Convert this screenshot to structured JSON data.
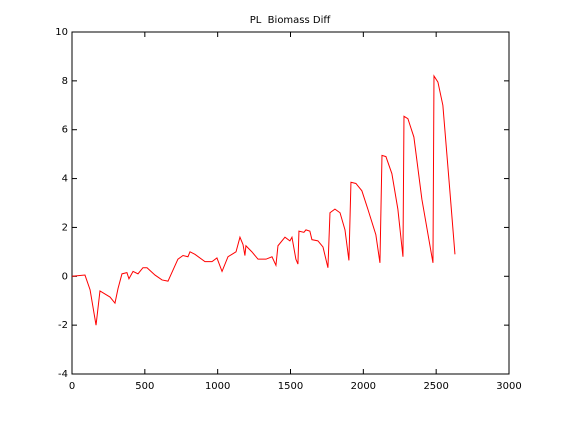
{
  "chart_data": {
    "type": "line",
    "title": "PL  Biomass Diff",
    "x": [
      0,
      89,
      124,
      165,
      192,
      261,
      295,
      316,
      343,
      377,
      391,
      419,
      453,
      487,
      515,
      570,
      618,
      659,
      727,
      762,
      796,
      810,
      844,
      913,
      961,
      995,
      1030,
      1071,
      1126,
      1153,
      1174,
      1187,
      1194,
      1235,
      1277,
      1332,
      1373,
      1400,
      1414,
      1462,
      1496,
      1510,
      1537,
      1551,
      1558,
      1592,
      1606,
      1633,
      1647,
      1688,
      1723,
      1757,
      1771,
      1805,
      1840,
      1874,
      1901,
      1915,
      1949,
      1990,
      2031,
      2086,
      2114,
      2128,
      2155,
      2196,
      2237,
      2272,
      2279,
      2306,
      2347,
      2402,
      2478,
      2485,
      2512,
      2546,
      2594,
      2629
    ],
    "series": [
      {
        "name": "PL Biomass Diff",
        "color": "#ff0000",
        "values": [
          0,
          0.05,
          -0.55,
          -2.0,
          -0.6,
          -0.85,
          -1.1,
          -0.5,
          0.1,
          0.15,
          -0.1,
          0.2,
          0.1,
          0.35,
          0.35,
          0.05,
          -0.15,
          -0.2,
          0.7,
          0.85,
          0.8,
          1.0,
          0.9,
          0.6,
          0.6,
          0.75,
          0.2,
          0.8,
          1.0,
          1.6,
          1.3,
          0.85,
          1.25,
          1.0,
          0.7,
          0.7,
          0.8,
          0.45,
          1.25,
          1.6,
          1.45,
          1.6,
          0.7,
          0.5,
          1.85,
          1.8,
          1.9,
          1.85,
          1.5,
          1.45,
          1.2,
          0.35,
          2.6,
          2.75,
          2.6,
          1.9,
          0.65,
          3.85,
          3.8,
          3.5,
          2.75,
          1.7,
          0.55,
          4.95,
          4.9,
          4.2,
          2.75,
          0.8,
          6.55,
          6.45,
          5.7,
          3.15,
          0.55,
          8.2,
          7.95,
          7.0,
          3.5,
          0.9
        ]
      }
    ],
    "xlim": [
      0,
      3000
    ],
    "xticks": [
      0,
      500,
      1000,
      1500,
      2000,
      2500,
      3000
    ],
    "ylim": [
      -4,
      10
    ],
    "yticks": [
      -4,
      -2,
      0,
      2,
      4,
      6,
      8,
      10
    ],
    "grid": false
  }
}
